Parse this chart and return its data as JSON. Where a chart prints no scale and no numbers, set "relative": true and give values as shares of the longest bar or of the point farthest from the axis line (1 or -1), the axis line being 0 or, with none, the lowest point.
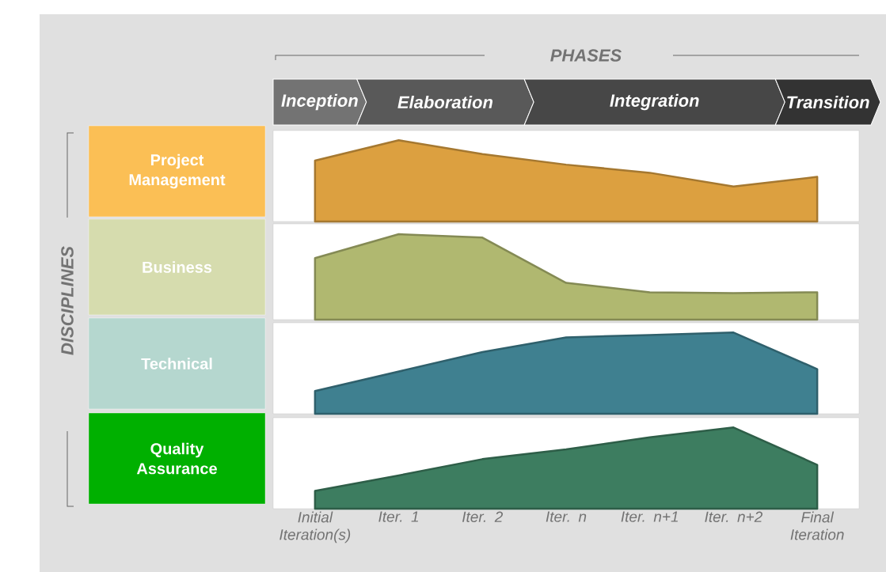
{
  "chart_data": [
    {
      "type": "area",
      "title": "Project Management",
      "relative": true,
      "tick_labels": false,
      "categories": [
        null,
        null,
        null,
        null,
        null,
        null,
        null
      ],
      "series": [
        {
          "color": "#dca040",
          "values": [
            0.75,
            1,
            0.83,
            0.7,
            0.6,
            0.43,
            0.55
          ]
        }
      ],
      "annotations": [
        "PHASES",
        "Inception",
        "Elaboration",
        "Integration",
        "Transition",
        "DISCIPLINES"
      ]
    },
    {
      "type": "area",
      "title": "Business",
      "relative": true,
      "tick_labels": false,
      "categories": [
        null,
        null,
        null,
        null,
        null,
        null,
        null
      ],
      "series": [
        {
          "color": "#b0b870",
          "values": [
            0.72,
            1,
            0.96,
            0.43,
            0.32,
            0.31,
            0.32
          ]
        }
      ]
    },
    {
      "type": "area",
      "title": "Technical",
      "relative": true,
      "tick_labels": false,
      "categories": [
        null,
        null,
        null,
        null,
        null,
        null,
        null
      ],
      "series": [
        {
          "color": "#3f8090",
          "values": [
            0.28,
            0.52,
            0.76,
            0.94,
            0.97,
            1,
            0.55
          ]
        }
      ]
    },
    {
      "type": "area",
      "title": "Quality Assurance",
      "relative": true,
      "tick_labels": "x",
      "categories": [
        "Initial Iteration(s)",
        "Iter. 1",
        "Iter. 2",
        "Iter. n",
        "Iter. n+1",
        "Iter. n+2",
        "Final Iteration"
      ],
      "series": [
        {
          "color": "#3d7d60",
          "values": [
            0.22,
            0.41,
            0.61,
            0.73,
            0.88,
            1,
            0.54
          ]
        }
      ]
    }
  ]
}
